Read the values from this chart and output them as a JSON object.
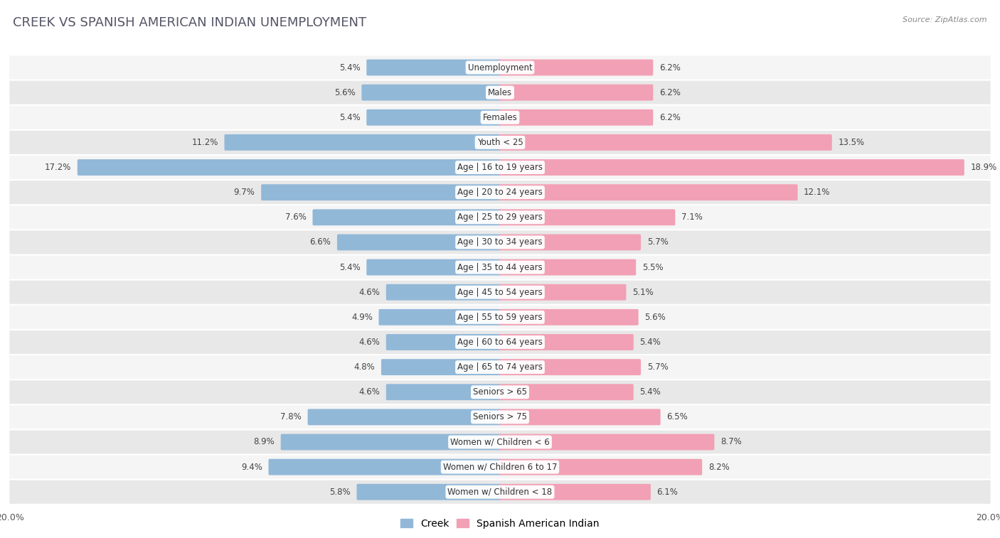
{
  "title": "CREEK VS SPANISH AMERICAN INDIAN UNEMPLOYMENT",
  "source": "Source: ZipAtlas.com",
  "categories": [
    "Unemployment",
    "Males",
    "Females",
    "Youth < 25",
    "Age | 16 to 19 years",
    "Age | 20 to 24 years",
    "Age | 25 to 29 years",
    "Age | 30 to 34 years",
    "Age | 35 to 44 years",
    "Age | 45 to 54 years",
    "Age | 55 to 59 years",
    "Age | 60 to 64 years",
    "Age | 65 to 74 years",
    "Seniors > 65",
    "Seniors > 75",
    "Women w/ Children < 6",
    "Women w/ Children 6 to 17",
    "Women w/ Children < 18"
  ],
  "creek_values": [
    5.4,
    5.6,
    5.4,
    11.2,
    17.2,
    9.7,
    7.6,
    6.6,
    5.4,
    4.6,
    4.9,
    4.6,
    4.8,
    4.6,
    7.8,
    8.9,
    9.4,
    5.8
  ],
  "spanish_values": [
    6.2,
    6.2,
    6.2,
    13.5,
    18.9,
    12.1,
    7.1,
    5.7,
    5.5,
    5.1,
    5.6,
    5.4,
    5.7,
    5.4,
    6.5,
    8.7,
    8.2,
    6.1
  ],
  "creek_color": "#92b8d8",
  "spanish_color": "#f2a0b5",
  "background_color": "#ffffff",
  "row_color_light": "#f5f5f5",
  "row_color_dark": "#e8e8e8",
  "xlim": 20.0,
  "title_fontsize": 13,
  "label_fontsize": 8.5,
  "value_fontsize": 8.5,
  "legend_fontsize": 10
}
